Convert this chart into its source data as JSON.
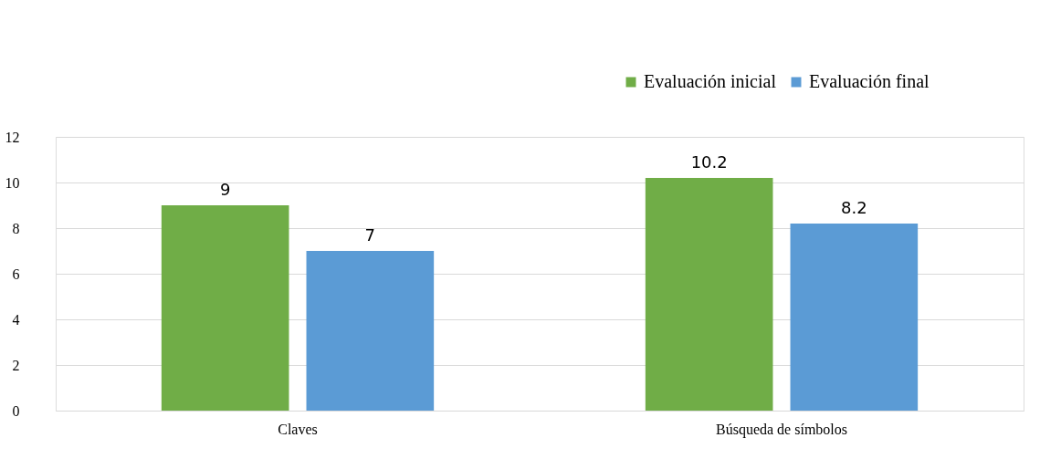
{
  "chart_data": {
    "type": "bar",
    "categories": [
      "Claves",
      "Búsqueda de símbolos"
    ],
    "series": [
      {
        "name": "Evaluación inicial",
        "color": "#70ad47",
        "values": [
          9,
          10.2
        ]
      },
      {
        "name": "Evaluación final",
        "color": "#5b9bd5",
        "values": [
          7,
          8.2
        ]
      }
    ],
    "ylim": [
      0,
      12
    ],
    "yticks": [
      0,
      2,
      4,
      6,
      8,
      10,
      12
    ],
    "grid": "y",
    "legend": "top right",
    "data_labels": true
  }
}
